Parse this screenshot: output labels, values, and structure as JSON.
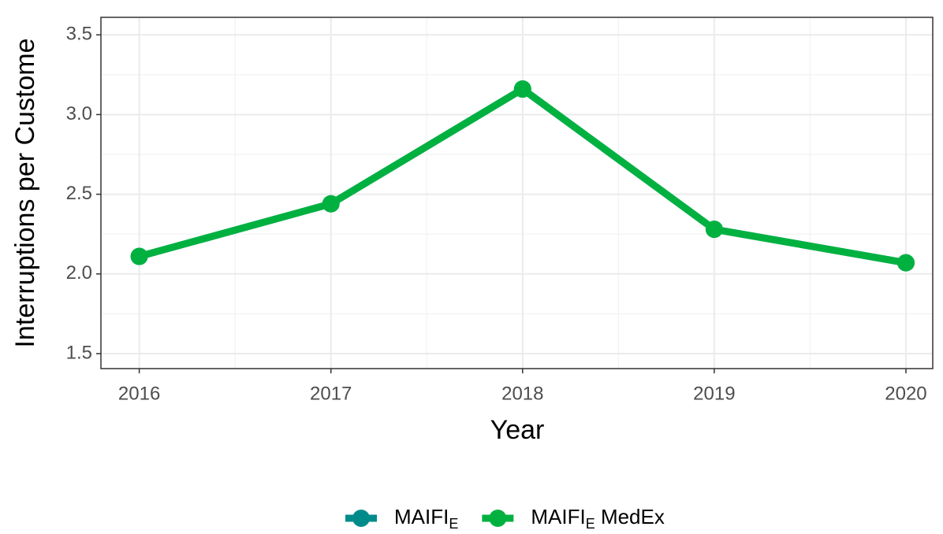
{
  "chart_data": {
    "type": "line",
    "x_label": "Year",
    "y_label": "Interruptions per Custome",
    "x": [
      2016,
      2017,
      2018,
      2019,
      2020
    ],
    "series": [
      {
        "name": "MAIFI",
        "name_sub": "E",
        "name_suffix": "",
        "color": "#008b8b",
        "values": [
          2.11,
          2.44,
          3.16,
          2.28,
          2.07
        ]
      },
      {
        "name": "MAIFI",
        "name_sub": "E",
        "name_suffix": " MedEx",
        "color": "#00b140",
        "values": [
          2.11,
          2.44,
          3.16,
          2.28,
          2.07
        ]
      }
    ],
    "xlim": [
      2015.8,
      2020.14
    ],
    "xticks": [
      2016,
      2017,
      2018,
      2019,
      2020
    ],
    "ylim": [
      1.406,
      3.61
    ],
    "yticks": [
      {
        "value": 1.5,
        "label": "1.5"
      },
      {
        "value": 2,
        "label": "2.0"
      },
      {
        "value": 2.5,
        "label": "2.5"
      },
      {
        "value": 3,
        "label": "3.0"
      },
      {
        "value": 3.5,
        "label": "3.5"
      }
    ],
    "grid": true,
    "legend": "bottom"
  }
}
